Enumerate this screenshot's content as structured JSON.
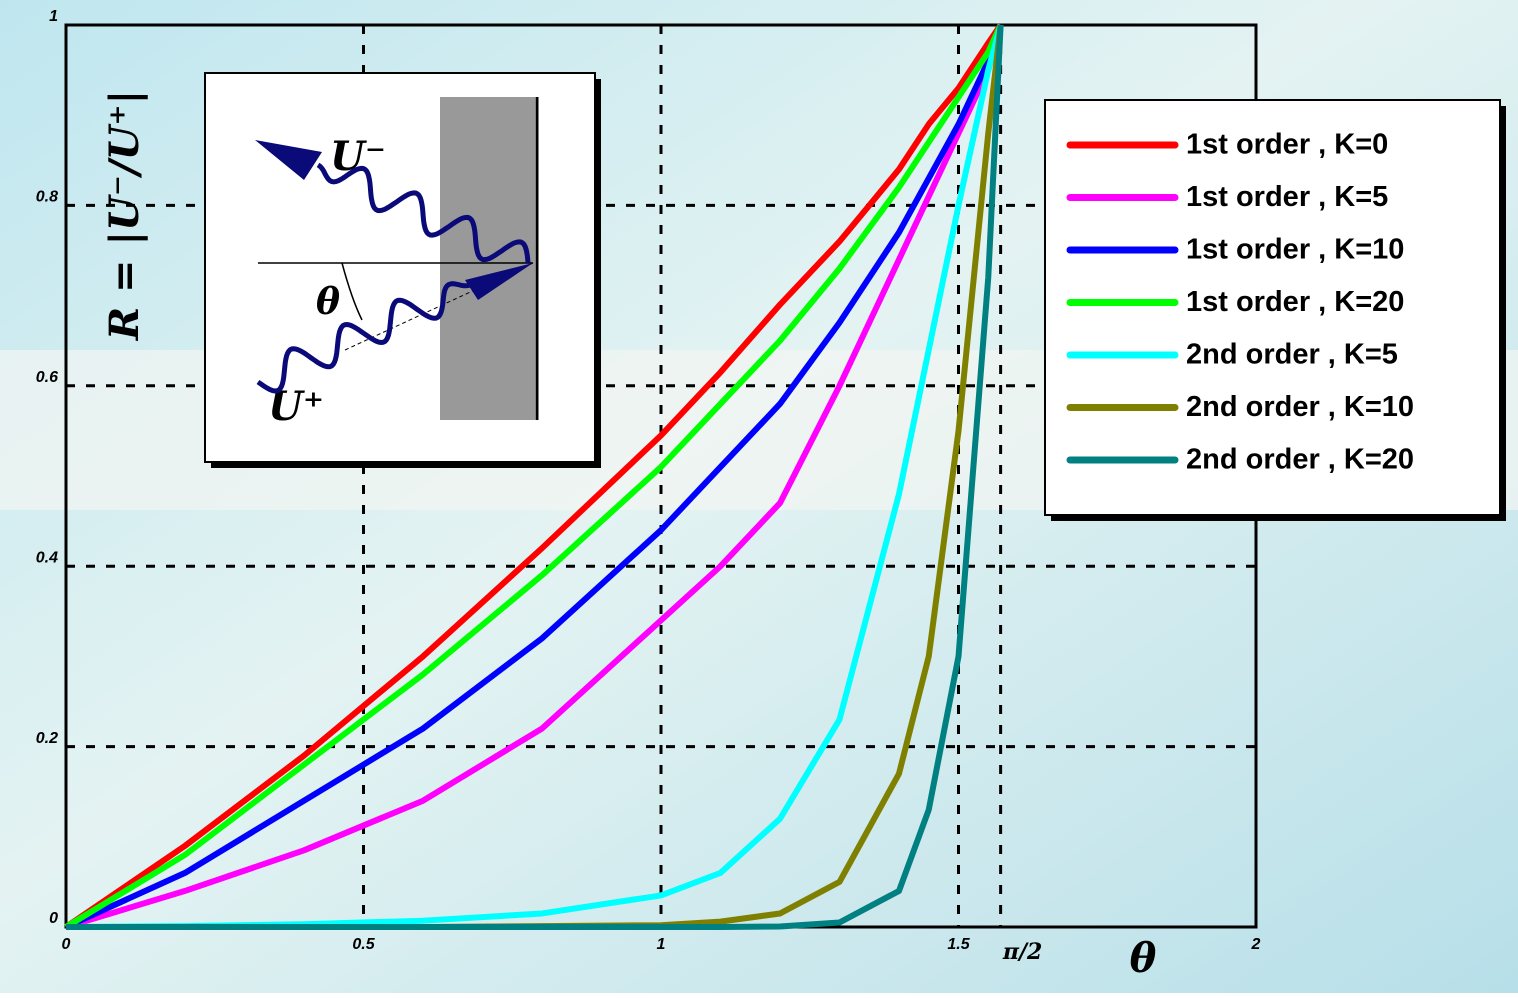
{
  "chart_data": {
    "type": "line",
    "ylabel": "R = |U⁻/U⁺|",
    "xlabel": "θ",
    "annotations": [
      "U⁻",
      "U⁺",
      "θ"
    ],
    "x": [
      0,
      0.2,
      0.4,
      0.6,
      0.8,
      1.0,
      1.1,
      1.2,
      1.3,
      1.4,
      1.45,
      1.5,
      1.55,
      1.5708
    ],
    "series": [
      {
        "name": "1st order , K=0",
        "color": "#ff0000",
        "values": [
          0,
          0.09,
          0.19,
          0.3,
          0.42,
          0.545,
          0.615,
          0.69,
          0.76,
          0.84,
          0.89,
          0.93,
          0.98,
          1
        ]
      },
      {
        "name": "1st order , K=5",
        "color": "#ff00ff",
        "values": [
          0,
          0.04,
          0.085,
          0.14,
          0.22,
          0.34,
          0.4,
          0.47,
          0.6,
          0.74,
          0.81,
          0.88,
          0.95,
          1
        ]
      },
      {
        "name": "1st order , K=10",
        "color": "#0000ff",
        "values": [
          0,
          0.06,
          0.14,
          0.22,
          0.32,
          0.44,
          0.51,
          0.58,
          0.67,
          0.77,
          0.83,
          0.89,
          0.96,
          1
        ]
      },
      {
        "name": "1st order , K=20",
        "color": "#00ff00",
        "values": [
          0,
          0.08,
          0.18,
          0.28,
          0.39,
          0.51,
          0.58,
          0.65,
          0.73,
          0.82,
          0.87,
          0.92,
          0.97,
          1
        ]
      },
      {
        "name": "2nd order , K=5",
        "color": "#00ffff",
        "values": [
          0,
          0.001,
          0.003,
          0.007,
          0.015,
          0.035,
          0.06,
          0.12,
          0.23,
          0.48,
          0.64,
          0.8,
          0.95,
          1
        ]
      },
      {
        "name": "2nd order , K=10",
        "color": "#808000",
        "values": [
          0,
          0,
          0,
          0,
          0.001,
          0.002,
          0.006,
          0.015,
          0.05,
          0.17,
          0.3,
          0.55,
          0.88,
          1
        ]
      },
      {
        "name": "2nd order , K=20",
        "color": "#008080",
        "values": [
          0,
          0,
          0,
          0,
          0,
          0,
          0,
          0.0005,
          0.005,
          0.04,
          0.13,
          0.3,
          0.72,
          1
        ]
      }
    ],
    "xlim": [
      0,
      2
    ],
    "ylim": [
      0,
      1
    ],
    "xticks": [
      0,
      0.5,
      1,
      1.5,
      {
        "value": 1.5708,
        "label": "π/2"
      },
      2
    ],
    "yticks": [
      0,
      0.2,
      0.4,
      0.6,
      0.8,
      1
    ],
    "grid": true,
    "legend": "upper right"
  }
}
